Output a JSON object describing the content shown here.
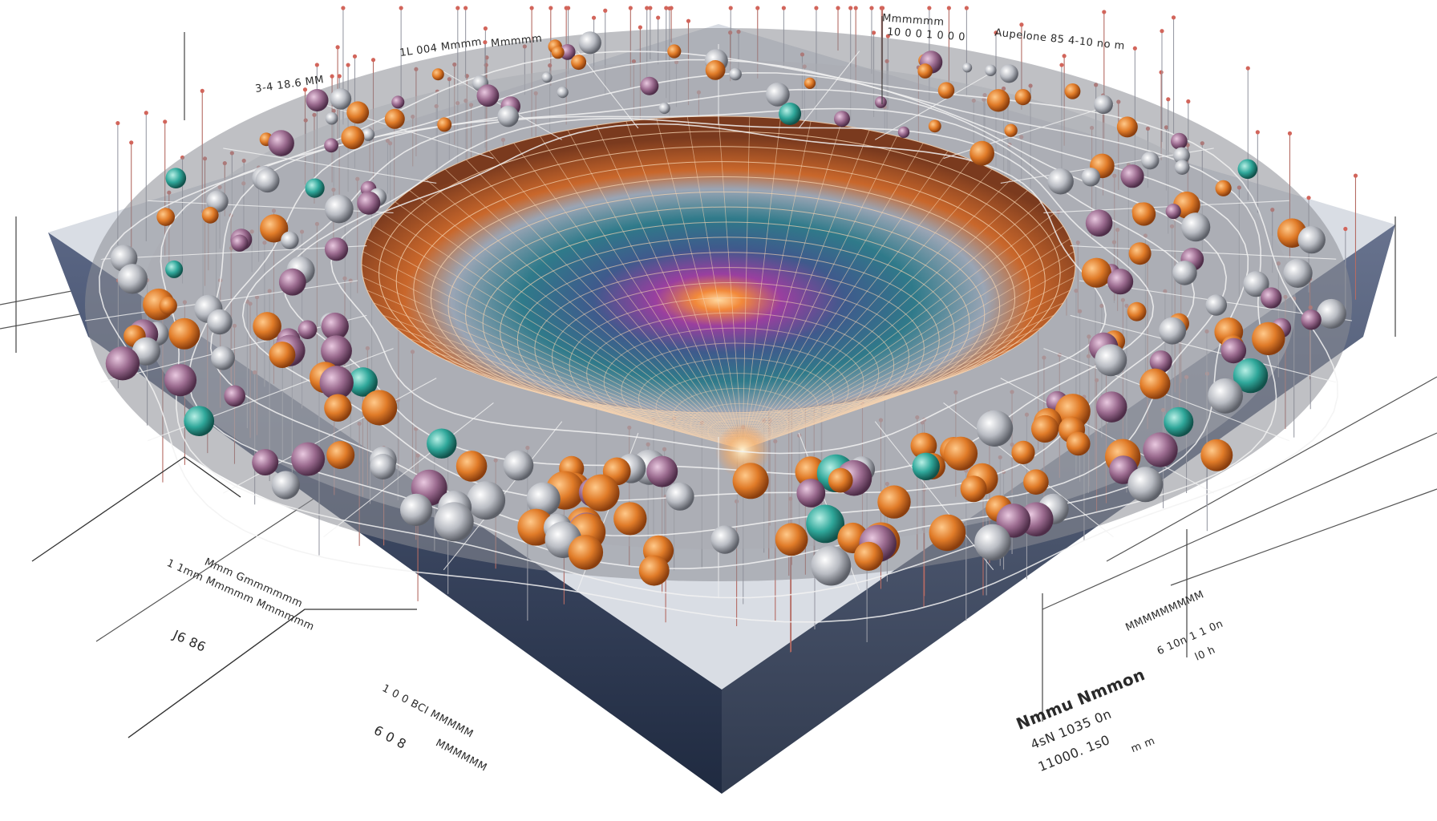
{
  "labels": {
    "top_left_1": "3-4 18.6 MM",
    "top_left_2": "1L 004 Mmmm",
    "top_left_3": "Mmmmm",
    "top_mid": "Mmmmmm",
    "top_mid_2": "10 0 0 1 0 0 0",
    "top_right": "Aupelone 85  4-10 no m",
    "left_1": "Mmm Gmmmmmm",
    "left_2": "1 1mm Mmmmm Mmmmmm",
    "left_3": "J6  86",
    "bottom_left_1": "1 0 0 BCI MMMMM",
    "bottom_left_2": "6 0  8",
    "bottom_left_3": "MMMMMM",
    "bottom_right_1": "Nmmu Nmmon",
    "bottom_right_2": "4sN 1035 0n",
    "bottom_right_3": "11000.  1s0",
    "bottom_right_4": "m  m",
    "right_1": "MMMMMMMMM",
    "right_2": "6 10n 1 1 0n",
    "right_3": "l0  h"
  },
  "colors": {
    "grid_line": "#c8c8c8",
    "pin": "#c9706a",
    "sphere_orange": "#e07b28",
    "sphere_purple": "#9a6a8e",
    "sphere_teal": "#2fa79a",
    "sphere_gray": "#b9bcc3",
    "base_dark": "#2e3b55",
    "funnel_orange": "#d0662a",
    "funnel_center": "#8b3fa0"
  }
}
